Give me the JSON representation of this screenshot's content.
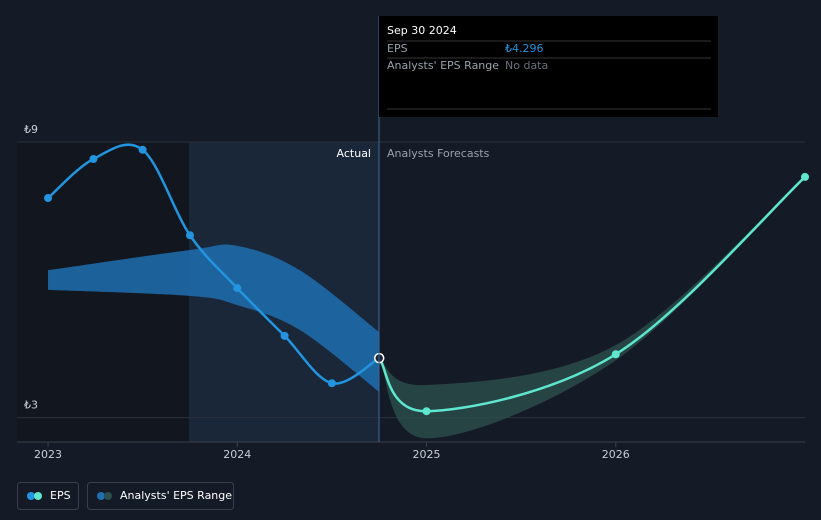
{
  "chart_data": {
    "type": "line",
    "xlim": [
      2022.836,
      2027.0
    ],
    "ylim": [
      2.47,
      9
    ],
    "xticks": [
      2023,
      2024,
      2025,
      2026
    ],
    "yticks": [
      {
        "value": 9,
        "label": "₺9"
      },
      {
        "value": 3,
        "label": "₺3"
      }
    ],
    "actual_label": "Actual",
    "forecast_label": "Analysts Forecasts",
    "series": [
      {
        "name": "EPS",
        "color": "#2394df",
        "forecast_color": "#5ee6cf",
        "x": [
          2023.0,
          2023.24,
          2023.5,
          2023.75,
          2024.0,
          2024.25,
          2024.5,
          2024.75
        ],
        "values": [
          7.78,
          8.63,
          8.83,
          6.97,
          5.82,
          4.78,
          3.75,
          4.296
        ],
        "forecast_x": [
          2024.75,
          2025.0,
          2026.0,
          2027.0
        ],
        "forecast_values": [
          4.296,
          3.14,
          4.38,
          8.24
        ]
      },
      {
        "name": "Analysts' EPS Range",
        "color": "#1f6fb0",
        "forecast_color": "#2c4f4c",
        "x": [
          2023.0,
          2023.75,
          2024.0,
          2024.33,
          2024.75
        ],
        "low": [
          5.78,
          5.65,
          5.45,
          4.91,
          3.56
        ],
        "high": [
          6.21,
          6.65,
          6.74,
          6.21,
          4.86
        ],
        "forecast_x": [
          2024.75,
          2025.0,
          2026.0,
          2027.0
        ],
        "forecast_low": [
          4.296,
          2.55,
          4.25,
          8.24
        ],
        "forecast_high": [
          4.296,
          3.71,
          4.58,
          8.24
        ]
      }
    ],
    "tooltip": {
      "date": "Sep 30 2024",
      "rows": [
        {
          "label": "EPS",
          "value": 4.296,
          "value_label": "₺4.296"
        },
        {
          "label": "Analysts' EPS Range",
          "value_label": "No data"
        }
      ]
    }
  }
}
